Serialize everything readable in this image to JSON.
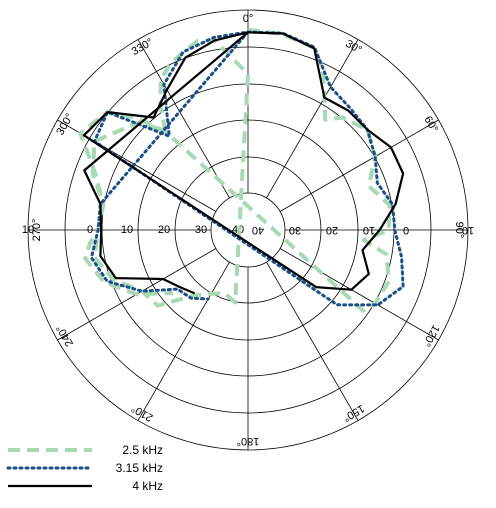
{
  "chart_data": {
    "type": "polar-line",
    "angle_labels": [
      "0°",
      "30°",
      "60°",
      "90°",
      "120°",
      "150°",
      "180°",
      "210°",
      "240°",
      "270°",
      "300°",
      "330°"
    ],
    "angles_deg": [
      0,
      30,
      60,
      90,
      120,
      150,
      180,
      210,
      240,
      270,
      300,
      330
    ],
    "radial_labels": [
      "10",
      "0",
      "10",
      "20",
      "30",
      "40",
      "40",
      "30",
      "20",
      "10",
      "0",
      "10"
    ],
    "radial_range": [
      -50,
      10
    ],
    "grid": true,
    "legend_position": "bottom-left",
    "series": [
      {
        "name": "2.5 kHz",
        "color": "#a8d8b4",
        "style": "dashed",
        "points": [
          [
            0,
            3.5
          ],
          [
            10,
            3.1
          ],
          [
            20,
            1.4
          ],
          [
            25,
            -4
          ],
          [
            30,
            -12
          ],
          [
            35,
            -18
          ],
          [
            40,
            -14
          ],
          [
            50,
            -11
          ],
          [
            60,
            -14
          ],
          [
            70,
            -20
          ],
          [
            80,
            -15
          ],
          [
            90,
            -16
          ],
          [
            95,
            -24
          ],
          [
            100,
            -16
          ],
          [
            110,
            -13
          ],
          [
            120,
            -14
          ],
          [
            125,
            -16
          ],
          [
            320,
            -20
          ],
          [
            315,
            -10
          ],
          [
            310,
            -2
          ],
          [
            300,
            1.4
          ],
          [
            290,
            -9
          ],
          [
            280,
            -14
          ],
          [
            270,
            -13
          ],
          [
            260,
            -11
          ],
          [
            250,
            -15
          ],
          [
            240,
            -22
          ],
          [
            230,
            -23.5
          ],
          [
            220,
            -34
          ],
          [
            210,
            -38
          ],
          [
            200,
            -40
          ],
          [
            190,
            -38
          ],
          [
            360,
            -11
          ],
          [
            350,
            1
          ],
          [
            345,
            2
          ],
          [
            340,
            0
          ],
          [
            335,
            -2
          ],
          [
            330,
            -5
          ],
          [
            325,
            -12
          ],
          [
            320,
            -20
          ],
          [
            315,
            -12
          ],
          [
            300,
            -4
          ],
          [
            290,
            -8
          ],
          [
            280,
            -14
          ],
          [
            270,
            -13
          ],
          [
            265,
            -10
          ],
          [
            260,
            -8
          ],
          [
            250,
            -12
          ],
          [
            240,
            -20
          ],
          [
            230,
            -30
          ]
        ]
      },
      {
        "name": "3.15 kHz",
        "color": "#1a4f8a",
        "style": "dotted",
        "points": [
          [
            0,
            2.8
          ],
          [
            10,
            3.4
          ],
          [
            20,
            1.6
          ],
          [
            30,
            -8
          ],
          [
            40,
            -10
          ],
          [
            50,
            -11
          ],
          [
            60,
            -14
          ],
          [
            70,
            -17
          ],
          [
            80,
            -14
          ],
          [
            90,
            -14
          ],
          [
            100,
            -11
          ],
          [
            110,
            -8
          ],
          [
            120,
            -13
          ],
          [
            130,
            -24
          ],
          [
            300,
            -4
          ],
          [
            310,
            -2
          ],
          [
            320,
            -22
          ],
          [
            330,
            -7
          ],
          [
            340,
            0
          ],
          [
            350,
            2
          ],
          [
            360,
            2.8
          ],
          [
            280,
            -13
          ],
          [
            270,
            -13
          ],
          [
            260,
            -10
          ],
          [
            250,
            -13
          ],
          [
            240,
            -22
          ],
          [
            230,
            -32
          ],
          [
            220,
            -33
          ],
          [
            210,
            -36
          ]
        ]
      },
      {
        "name": "4 kHz",
        "color": "#000000",
        "style": "solid",
        "points": [
          [
            0,
            2.7
          ],
          [
            10,
            3.3
          ],
          [
            20,
            1.3
          ],
          [
            30,
            -12
          ],
          [
            40,
            -11
          ],
          [
            50,
            -11
          ],
          [
            60,
            -8
          ],
          [
            70,
            -8
          ],
          [
            80,
            -13
          ],
          [
            90,
            -19
          ],
          [
            100,
            -24
          ],
          [
            110,
            -20
          ],
          [
            120,
            -23
          ],
          [
            130,
            -33
          ],
          [
            300,
            0
          ],
          [
            310,
            -2
          ],
          [
            320,
            -14
          ],
          [
            330,
            -9
          ],
          [
            340,
            -2
          ],
          [
            350,
            1
          ],
          [
            360,
            2.7
          ],
          [
            290,
            -5
          ],
          [
            280,
            -13
          ],
          [
            270,
            -14
          ],
          [
            260,
            -13
          ],
          [
            250,
            -16
          ],
          [
            240,
            -30
          ],
          [
            230,
            -33
          ],
          [
            220,
            -35
          ]
        ]
      }
    ]
  }
}
